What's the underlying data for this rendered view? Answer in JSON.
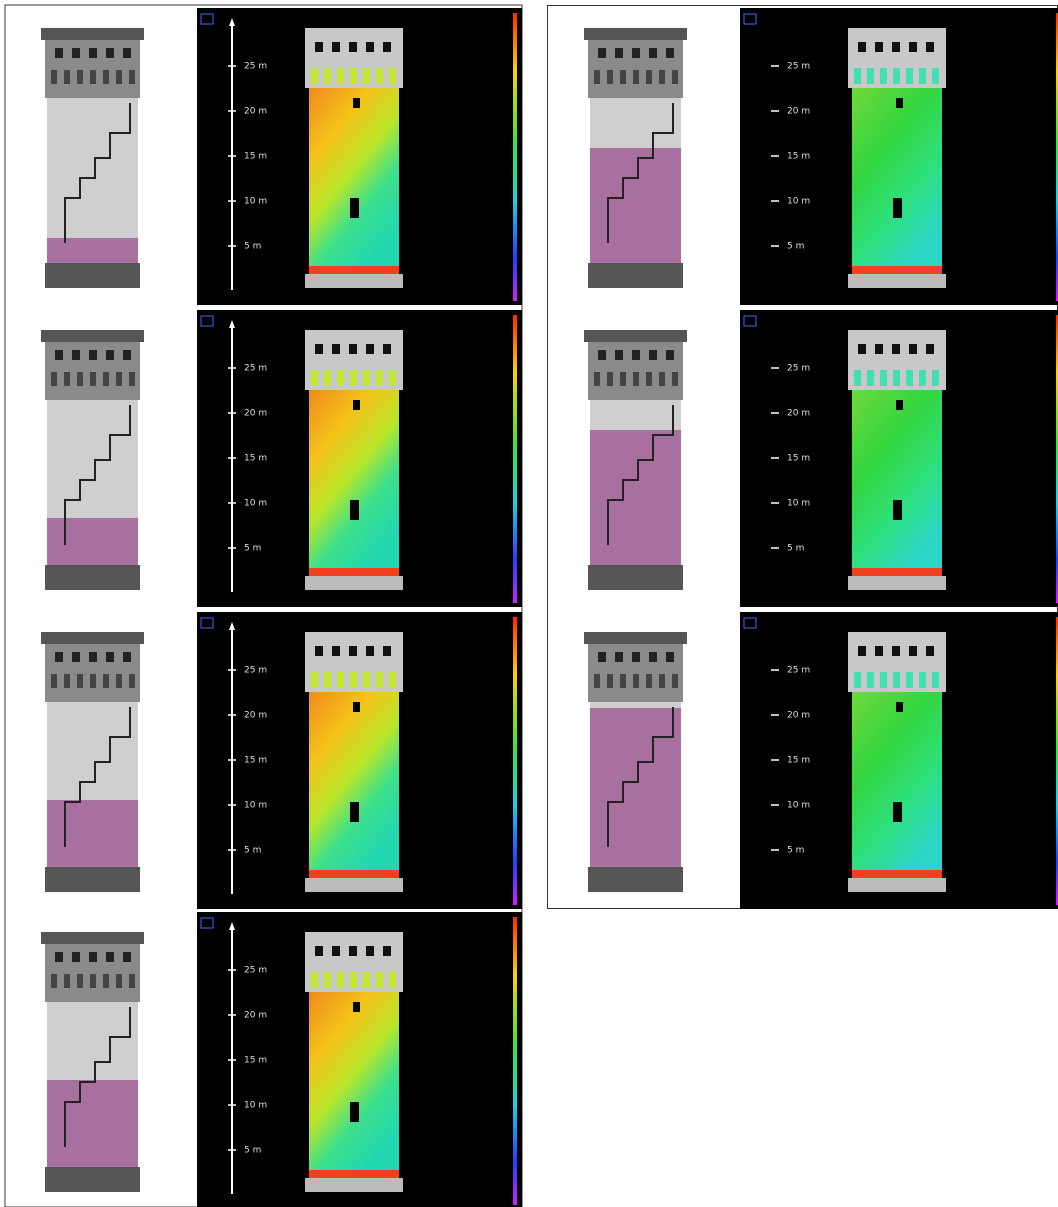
{
  "panels": {
    "left": [
      {
        "scale_labels": [
          "25 m",
          "20 m",
          "15 m",
          "10 m",
          "5 m"
        ]
      },
      {
        "scale_labels": [
          "25 m",
          "20 m",
          "15 m",
          "10 m",
          "5 m"
        ]
      },
      {
        "scale_labels": [
          "25 m",
          "20 m",
          "15 m",
          "10 m",
          "5 m"
        ]
      },
      {
        "scale_labels": [
          "25 m",
          "20 m",
          "15 m",
          "10 m",
          "5 m"
        ]
      }
    ],
    "right": [
      {
        "scale_labels": [
          "25 m",
          "20 m",
          "15 m",
          "10 m",
          "5 m"
        ]
      },
      {
        "scale_labels": [
          "25 m",
          "20 m",
          "15 m",
          "10 m",
          "5 m"
        ]
      },
      {
        "scale_labels": [
          "25 m",
          "20 m",
          "15 m",
          "10 m",
          "5 m"
        ]
      }
    ]
  }
}
